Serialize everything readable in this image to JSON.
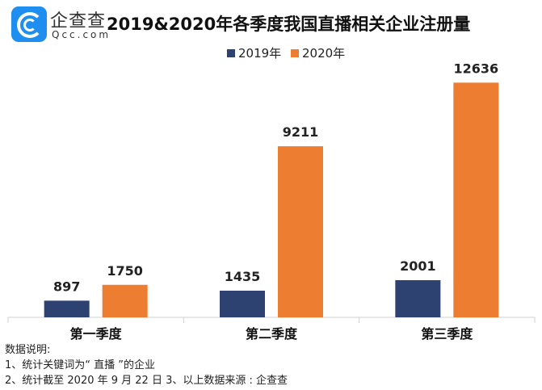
{
  "brand": {
    "name": "企查查",
    "domain": "Qcc.com"
  },
  "chart_data": {
    "type": "bar",
    "title": "2019&2020年各季度我国直播相关企业注册量",
    "categories": [
      "第一季度",
      "第二季度",
      "第三季度"
    ],
    "series": [
      {
        "name": "2019年",
        "color": "#2e4272",
        "values": [
          897,
          1435,
          2001
        ]
      },
      {
        "name": "2020年",
        "color": "#ed7d31",
        "values": [
          1750,
          9211,
          12636
        ]
      }
    ],
    "ylim": [
      0,
      14000
    ],
    "legend": "top-center",
    "grid": false,
    "data_labels": true
  },
  "notes": [
    "数据说明:",
    "1、统计关键词为“ 直播 ”的企业",
    "2、统计截至 2020 年 9 月 22 日 3、以上数据来源 : 企查查"
  ]
}
